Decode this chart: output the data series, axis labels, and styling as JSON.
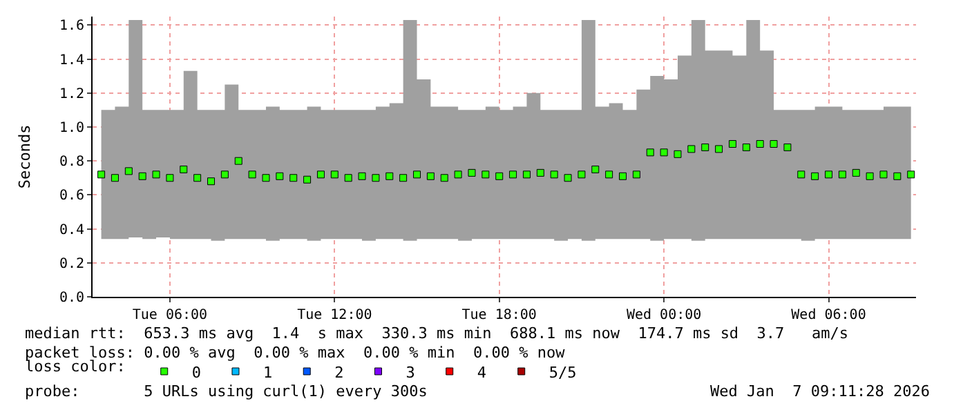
{
  "chart_data": {
    "type": "scatter",
    "ylabel": "Seconds",
    "x": [
      "2026-01-06T03:30",
      "2026-01-06T04:00",
      "2026-01-06T04:30",
      "2026-01-06T05:00",
      "2026-01-06T05:30",
      "2026-01-06T06:00",
      "2026-01-06T06:30",
      "2026-01-06T07:00",
      "2026-01-06T07:30",
      "2026-01-06T08:00",
      "2026-01-06T08:30",
      "2026-01-06T09:00",
      "2026-01-06T09:30",
      "2026-01-06T10:00",
      "2026-01-06T10:30",
      "2026-01-06T11:00",
      "2026-01-06T11:30",
      "2026-01-06T12:00",
      "2026-01-06T12:30",
      "2026-01-06T13:00",
      "2026-01-06T13:30",
      "2026-01-06T14:00",
      "2026-01-06T14:30",
      "2026-01-06T15:00",
      "2026-01-06T15:30",
      "2026-01-06T16:00",
      "2026-01-06T16:30",
      "2026-01-06T17:00",
      "2026-01-06T17:30",
      "2026-01-06T18:00",
      "2026-01-06T18:30",
      "2026-01-06T19:00",
      "2026-01-06T19:30",
      "2026-01-06T20:00",
      "2026-01-06T20:30",
      "2026-01-06T21:00",
      "2026-01-06T21:30",
      "2026-01-06T22:00",
      "2026-01-06T22:30",
      "2026-01-06T23:00",
      "2026-01-06T23:30",
      "2026-01-07T00:00",
      "2026-01-07T00:30",
      "2026-01-07T01:00",
      "2026-01-07T01:30",
      "2026-01-07T02:00",
      "2026-01-07T02:30",
      "2026-01-07T03:00",
      "2026-01-07T03:30",
      "2026-01-07T04:00",
      "2026-01-07T04:30",
      "2026-01-07T05:00",
      "2026-01-07T05:30",
      "2026-01-07T06:00",
      "2026-01-07T06:30",
      "2026-01-07T07:00",
      "2026-01-07T07:30",
      "2026-01-07T08:00",
      "2026-01-07T08:30",
      "2026-01-07T09:00"
    ],
    "series": [
      {
        "name": "0",
        "color": "#26ff00",
        "values": [
          0.72,
          0.7,
          0.74,
          0.71,
          0.72,
          0.7,
          0.75,
          0.7,
          0.68,
          0.72,
          0.8,
          0.72,
          0.7,
          0.71,
          0.7,
          0.69,
          0.72,
          0.72,
          0.7,
          0.71,
          0.7,
          0.71,
          0.7,
          0.72,
          0.71,
          0.7,
          0.72,
          0.73,
          0.72,
          0.71,
          0.72,
          0.72,
          0.73,
          0.72,
          0.7,
          0.72,
          0.75,
          0.72,
          0.71,
          0.72,
          0.85,
          0.85,
          0.84,
          0.87,
          0.88,
          0.87,
          0.9,
          0.88,
          0.9,
          0.9,
          0.88,
          0.72,
          0.71,
          0.72,
          0.72,
          0.73,
          0.71,
          0.72,
          0.71,
          0.72
        ],
        "lower": [
          0.34,
          0.34,
          0.35,
          0.34,
          0.35,
          0.34,
          0.34,
          0.34,
          0.33,
          0.34,
          0.34,
          0.34,
          0.33,
          0.34,
          0.34,
          0.33,
          0.34,
          0.34,
          0.34,
          0.33,
          0.34,
          0.34,
          0.33,
          0.34,
          0.34,
          0.34,
          0.33,
          0.34,
          0.34,
          0.34,
          0.34,
          0.34,
          0.34,
          0.33,
          0.34,
          0.33,
          0.34,
          0.34,
          0.34,
          0.34,
          0.33,
          0.34,
          0.34,
          0.33,
          0.34,
          0.34,
          0.34,
          0.34,
          0.34,
          0.34,
          0.34,
          0.33,
          0.34,
          0.34,
          0.34,
          0.34,
          0.34,
          0.34,
          0.34,
          0.34
        ],
        "upper": [
          1.1,
          1.12,
          1.63,
          1.1,
          1.1,
          1.1,
          1.33,
          1.1,
          1.1,
          1.25,
          1.1,
          1.1,
          1.12,
          1.1,
          1.1,
          1.12,
          1.1,
          1.1,
          1.1,
          1.1,
          1.12,
          1.14,
          1.63,
          1.28,
          1.12,
          1.12,
          1.1,
          1.1,
          1.12,
          1.1,
          1.12,
          1.2,
          1.1,
          1.1,
          1.1,
          1.63,
          1.12,
          1.14,
          1.1,
          1.22,
          1.3,
          1.28,
          1.42,
          1.63,
          1.45,
          1.45,
          1.42,
          1.63,
          1.45,
          1.1,
          1.1,
          1.1,
          1.12,
          1.12,
          1.1,
          1.1,
          1.1,
          1.12,
          1.12,
          1.12
        ]
      },
      {
        "name": "1",
        "color": "#00b8ff",
        "values": [
          null,
          null,
          null,
          null,
          null,
          null,
          null,
          null,
          null,
          null,
          null,
          null,
          null,
          null,
          null,
          null,
          null,
          null,
          null,
          null,
          null,
          null,
          null,
          null,
          null,
          null,
          null,
          null,
          null,
          null,
          null,
          null,
          null,
          null,
          null,
          null,
          null,
          null,
          null,
          null,
          null,
          null,
          null,
          null,
          null,
          null,
          null,
          null,
          null,
          null,
          null,
          null,
          null,
          null,
          null,
          null,
          null,
          null,
          null,
          null
        ]
      },
      {
        "name": "2",
        "color": "#0059ff",
        "values": [
          null,
          null,
          null,
          null,
          null,
          null,
          null,
          null,
          null,
          null,
          null,
          null,
          null,
          null,
          null,
          null,
          null,
          null,
          null,
          null,
          null,
          null,
          null,
          null,
          null,
          null,
          null,
          null,
          null,
          null,
          null,
          null,
          null,
          null,
          null,
          null,
          null,
          null,
          null,
          null,
          null,
          null,
          null,
          null,
          null,
          null,
          null,
          null,
          null,
          null,
          null,
          null,
          null,
          null,
          null,
          null,
          null,
          null,
          null,
          null
        ]
      },
      {
        "name": "3",
        "color": "#7e00ff",
        "values": [
          null,
          null,
          null,
          null,
          null,
          null,
          null,
          null,
          null,
          null,
          null,
          null,
          null,
          null,
          null,
          null,
          null,
          null,
          null,
          null,
          null,
          null,
          null,
          null,
          null,
          null,
          null,
          null,
          null,
          null,
          null,
          null,
          null,
          null,
          null,
          null,
          null,
          null,
          null,
          null,
          null,
          null,
          null,
          null,
          null,
          null,
          null,
          null,
          null,
          null,
          null,
          null,
          null,
          null,
          null,
          null,
          null,
          null,
          null,
          null
        ]
      },
      {
        "name": "4",
        "color": "#ff0000",
        "values": [
          null,
          null,
          null,
          null,
          null,
          null,
          null,
          null,
          null,
          null,
          null,
          null,
          null,
          null,
          null,
          null,
          null,
          null,
          null,
          null,
          null,
          null,
          null,
          null,
          null,
          null,
          null,
          null,
          null,
          null,
          null,
          null,
          null,
          null,
          null,
          null,
          null,
          null,
          null,
          null,
          null,
          null,
          null,
          null,
          null,
          null,
          null,
          null,
          null,
          null,
          null,
          null,
          null,
          null,
          null,
          null,
          null,
          null,
          null,
          null
        ]
      },
      {
        "name": "5/5",
        "color": "#a80000",
        "values": [
          null,
          null,
          null,
          null,
          null,
          null,
          null,
          null,
          null,
          null,
          null,
          null,
          null,
          null,
          null,
          null,
          null,
          null,
          null,
          null,
          null,
          null,
          null,
          null,
          null,
          null,
          null,
          null,
          null,
          null,
          null,
          null,
          null,
          null,
          null,
          null,
          null,
          null,
          null,
          null,
          null,
          null,
          null,
          null,
          null,
          null,
          null,
          null,
          null,
          null,
          null,
          null,
          null,
          null,
          null,
          null,
          null,
          null,
          null,
          null
        ]
      }
    ],
    "xlim": [
      "2026-01-06T03:11",
      "2026-01-07T09:11"
    ],
    "xticks": [
      {
        "value": "2026-01-06T06:00",
        "label": "Tue 06:00"
      },
      {
        "value": "2026-01-06T12:00",
        "label": "Tue 12:00"
      },
      {
        "value": "2026-01-06T18:00",
        "label": "Tue 18:00"
      },
      {
        "value": "2026-01-07T00:00",
        "label": "Wed 00:00"
      },
      {
        "value": "2026-01-07T06:00",
        "label": "Wed 06:00"
      }
    ],
    "ylim": [
      0,
      1.65
    ],
    "yticks": [
      {
        "value": 0,
        "label": "0.0"
      },
      {
        "value": 0.2,
        "label": "0.2"
      },
      {
        "value": 0.4,
        "label": "0.4"
      },
      {
        "value": 0.6,
        "label": "0.6"
      },
      {
        "value": 0.8,
        "label": "0.8"
      },
      {
        "value": 1.0,
        "label": "1.0"
      },
      {
        "value": 1.2,
        "label": "1.2"
      },
      {
        "value": 1.4,
        "label": "1.4"
      },
      {
        "value": 1.6,
        "label": "1.6"
      }
    ],
    "grid": true,
    "marker": "square",
    "legend": "bottom left",
    "legend_title": "loss color:",
    "annotations": [
      "median rtt:  653.3 ms avg  1.4  s max  330.3 ms min  688.1 ms now  174.7 ms sd  3.7   am/s",
      "packet loss: 0.00 % avg  0.00 % max  0.00 % min  0.00 % now",
      "probe:       5 URLs using curl(1) every 300s",
      "Wed Jan  7 09:11:28 2026"
    ]
  }
}
